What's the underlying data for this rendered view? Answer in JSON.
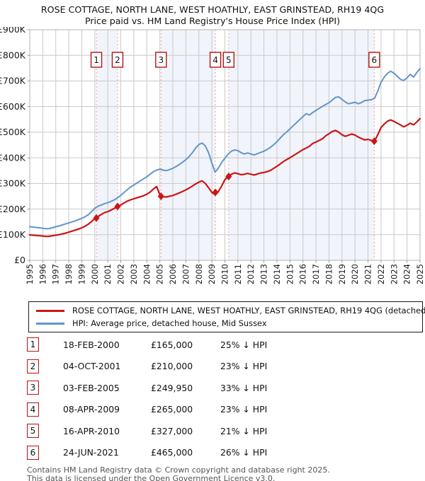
{
  "title": "ROSE COTTAGE, NORTH LANE, WEST HOATHLY, EAST GRINSTEAD, RH19 4QG",
  "subtitle": "Price paid vs. HM Land Registry's House Price Index (HPI)",
  "legend": {
    "items": [
      {
        "label": "ROSE COTTAGE, NORTH LANE, WEST HOATHLY, EAST GRINSTEAD, RH19 4QG (detached house)",
        "color": "#cc1515"
      },
      {
        "label": "HPI: Average price, detached house, Mid Sussex",
        "color": "#6295c9"
      }
    ]
  },
  "footer": {
    "line1": "Contains HM Land Registry data © Crown copyright and database right 2025.",
    "line2": "This data is licensed under the Open Government Licence v3.0."
  },
  "chart_data": {
    "type": "line",
    "title": "Price paid vs. HM Land Registry's House Price Index (HPI)",
    "unit": "GBP thousands",
    "xlim": [
      1995,
      2025
    ],
    "ylim": [
      0,
      900
    ],
    "grid": true,
    "x_start": 1995,
    "x_step": 0.25,
    "x_ticks": [
      1995,
      1996,
      1997,
      1998,
      1999,
      2000,
      2001,
      2002,
      2003,
      2004,
      2005,
      2006,
      2007,
      2008,
      2009,
      2010,
      2011,
      2012,
      2013,
      2014,
      2015,
      2016,
      2017,
      2018,
      2019,
      2020,
      2021,
      2022,
      2023,
      2024,
      2025
    ],
    "y_tick_values": [
      0,
      100,
      200,
      300,
      400,
      500,
      600,
      700,
      800,
      900
    ],
    "y_tick_labels": [
      "£0",
      "£100K",
      "£200K",
      "£300K",
      "£400K",
      "£500K",
      "£600K",
      "£700K",
      "£800K",
      "£900K"
    ],
    "series": [
      {
        "name": "ROSE COTTAGE, NORTH LANE, WEST HOATHLY, EAST GRINSTEAD, RH19 4QG (detached house)",
        "color": "#cc1515",
        "values": [
          99,
          98,
          97,
          96,
          95,
          93,
          94,
          96,
          98,
          100,
          103,
          106,
          110,
          114,
          118,
          122,
          127,
          133,
          141,
          151,
          163,
          171,
          179,
          186,
          190,
          196,
          203,
          210,
          216,
          224,
          231,
          236,
          240,
          244,
          248,
          252,
          258,
          266,
          278,
          288,
          256,
          248,
          247,
          250,
          253,
          258,
          263,
          269,
          275,
          282,
          290,
          298,
          305,
          310,
          300,
          283,
          265,
          256,
          268,
          290,
          315,
          327,
          336,
          341,
          338,
          334,
          336,
          339,
          336,
          333,
          337,
          341,
          343,
          346,
          351,
          359,
          367,
          376,
          385,
          393,
          400,
          408,
          416,
          424,
          432,
          438,
          445,
          456,
          462,
          468,
          474,
          486,
          494,
          503,
          507,
          500,
          490,
          484,
          488,
          493,
          489,
          481,
          475,
          470,
          472,
          468,
          465,
          490,
          518,
          532,
          543,
          548,
          542,
          535,
          528,
          521,
          527,
          535,
          529,
          540,
          553
        ]
      },
      {
        "name": "HPI: Average price, detached house, Mid Sussex",
        "color": "#6295c9",
        "values": [
          131,
          130,
          128,
          127,
          125,
          123,
          124,
          127,
          131,
          134,
          138,
          142,
          146,
          150,
          154,
          159,
          164,
          170,
          178,
          190,
          203,
          211,
          216,
          221,
          225,
          230,
          236,
          244,
          254,
          265,
          276,
          286,
          294,
          302,
          310,
          318,
          326,
          336,
          346,
          352,
          356,
          352,
          350,
          354,
          359,
          366,
          374,
          383,
          393,
          405,
          420,
          438,
          452,
          458,
          446,
          420,
          380,
          344,
          360,
          382,
          398,
          414,
          426,
          431,
          428,
          420,
          415,
          419,
          415,
          411,
          416,
          421,
          426,
          433,
          441,
          451,
          463,
          477,
          490,
          501,
          513,
          525,
          537,
          549,
          561,
          572,
          567,
          577,
          585,
          593,
          601,
          608,
          615,
          625,
          636,
          638,
          628,
          618,
          611,
          614,
          617,
          611,
          616,
          623,
          625,
          627,
          632,
          660,
          695,
          715,
          730,
          738,
          730,
          718,
          706,
          702,
          712,
          726,
          715,
          733,
          748
        ]
      }
    ],
    "sales": [
      {
        "num": "1",
        "date": "18-FEB-2000",
        "price": "£165,000",
        "hpi_delta": "25% ↓ HPI",
        "year": 2000.12,
        "value": 165
      },
      {
        "num": "2",
        "date": "04-OCT-2001",
        "price": "£210,000",
        "hpi_delta": "23% ↓ HPI",
        "year": 2001.75,
        "value": 210
      },
      {
        "num": "3",
        "date": "03-FEB-2005",
        "price": "£249,950",
        "hpi_delta": "33% ↓ HPI",
        "year": 2005.09,
        "value": 249.95
      },
      {
        "num": "4",
        "date": "08-APR-2009",
        "price": "£265,000",
        "hpi_delta": "23% ↓ HPI",
        "year": 2009.27,
        "value": 265
      },
      {
        "num": "5",
        "date": "16-APR-2010",
        "price": "£327,000",
        "hpi_delta": "21% ↓ HPI",
        "year": 2010.29,
        "value": 327
      },
      {
        "num": "6",
        "date": "24-JUN-2021",
        "price": "£465,000",
        "hpi_delta": "26% ↓ HPI",
        "year": 2021.48,
        "value": 465
      }
    ],
    "owned_bands": [
      [
        2000.12,
        2001.75
      ],
      [
        2005.09,
        2009.27
      ],
      [
        2010.29,
        2021.48
      ]
    ],
    "colors": {
      "band": "#f1f4fb",
      "grid": "#c9c9c9",
      "border": "#b3b3b3",
      "dashed_line": "#f59c9c",
      "marker_box_border": "#bb1111",
      "diamond": "#cc1515",
      "axis_text": "#1a1a1a"
    }
  }
}
